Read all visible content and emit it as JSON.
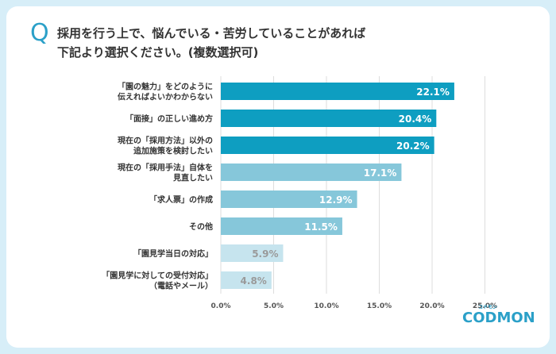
{
  "question": {
    "mark": "Q",
    "line1": "採用を行う上で、悩んでいる・苦労していることがあれば",
    "line2": "下記より選択ください。(複数選択可)"
  },
  "logo": {
    "text": "CODMON",
    "sub": "コドモン"
  },
  "colors": {
    "dark": "#0e9ec1",
    "mid": "#86c7da",
    "light": "#c6e4ee",
    "gridline": "#dddddd"
  },
  "chart_data": {
    "type": "bar",
    "orientation": "horizontal",
    "categories": [
      [
        "「園の魅力」をどのように",
        "伝えればよいかわからない"
      ],
      [
        "「面接」の正しい進め方"
      ],
      [
        "現在の「採用方法」以外の",
        "追加施策を検討したい"
      ],
      [
        "現在の「採用手法」自体を",
        "見直したい"
      ],
      [
        "「求人票」の作成"
      ],
      [
        "その他"
      ],
      [
        "「園見学当日の対応」"
      ],
      [
        "「園見学に対しての受付対応」",
        "（電話やメール）"
      ]
    ],
    "values": [
      22.1,
      20.4,
      20.2,
      17.1,
      12.9,
      11.5,
      5.9,
      4.8
    ],
    "value_labels": [
      "22.1%",
      "20.4%",
      "20.2%",
      "17.1%",
      "12.9%",
      "11.5%",
      "5.9%",
      "4.8%"
    ],
    "bar_tone": [
      "dark",
      "dark",
      "dark",
      "mid",
      "mid",
      "mid",
      "light",
      "light"
    ],
    "x_ticks": [
      0,
      5,
      10,
      15,
      20,
      25
    ],
    "x_tick_labels": [
      "0.0%",
      "5.0%",
      "10.0%",
      "15.0%",
      "20.0%",
      "25.0%"
    ],
    "xlim": [
      0,
      25
    ]
  }
}
